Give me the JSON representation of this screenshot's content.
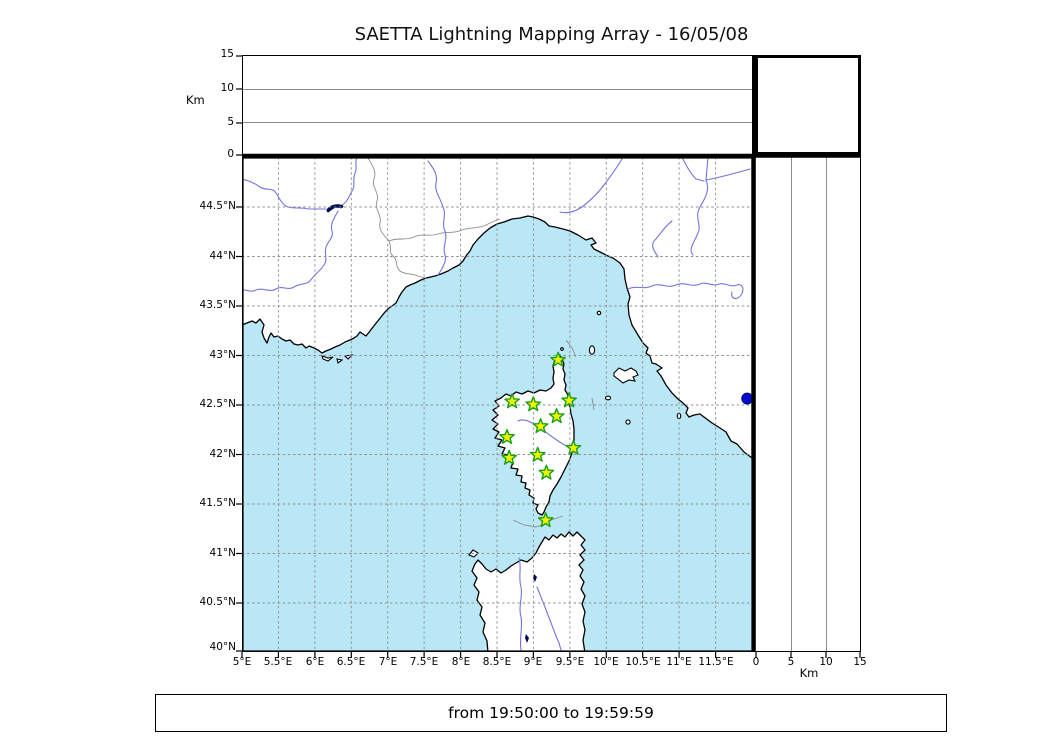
{
  "title": "SAETTA Lightning Mapping Array - 16/05/08",
  "footer": {
    "time_range_label": "from 19:50:00 to 19:59:59"
  },
  "colors": {
    "sea": "#b9e7f6",
    "land": "#ffffff",
    "river": "#7373e0",
    "lake": "#000a50",
    "lake_dot": "#0009cc",
    "star_fill": "#f2f200",
    "star_stroke": "#17a017"
  },
  "top_panel": {
    "ylabel": "Km",
    "yticks_top_to_bottom": [
      "15",
      "10",
      "5",
      "0"
    ],
    "ylim_km": [
      0,
      15
    ],
    "gridlines_km": [
      5,
      10
    ]
  },
  "right_panel": {
    "xlabel": "Km",
    "xticks": [
      "0",
      "5",
      "10",
      "15"
    ],
    "xlim_km": [
      0,
      15
    ],
    "gridlines_km": [
      5,
      10
    ]
  },
  "map": {
    "lat_ticks": [
      "44.5°N",
      "44°N",
      "43.5°N",
      "43°N",
      "42.5°N",
      "42°N",
      "41.5°N",
      "41°N",
      "40.5°N",
      "40°N"
    ],
    "lon_ticks": [
      "5°E",
      "5.5°E",
      "6°E",
      "6.5°E",
      "7°E",
      "7.5°E",
      "8°E",
      "8.5°E",
      "9°E",
      "9.5°E",
      "10°E",
      "10.5°E",
      "11°E",
      "11.5°E"
    ],
    "lon_range": [
      5,
      12
    ],
    "lat_range": [
      40,
      45
    ],
    "stations": [
      {
        "lon": 9.33,
        "lat": 42.95
      },
      {
        "lon": 8.7,
        "lat": 42.53
      },
      {
        "lon": 8.99,
        "lat": 42.5
      },
      {
        "lon": 9.48,
        "lat": 42.54
      },
      {
        "lon": 9.31,
        "lat": 42.38
      },
      {
        "lon": 9.09,
        "lat": 42.28
      },
      {
        "lon": 8.63,
        "lat": 42.17
      },
      {
        "lon": 9.54,
        "lat": 42.06
      },
      {
        "lon": 9.05,
        "lat": 41.99
      },
      {
        "lon": 8.66,
        "lat": 41.96
      },
      {
        "lon": 9.17,
        "lat": 41.81
      },
      {
        "lon": 9.16,
        "lat": 41.33
      }
    ],
    "features": {
      "lake_dot": {
        "lon": 11.92,
        "lat": 42.56
      }
    }
  }
}
